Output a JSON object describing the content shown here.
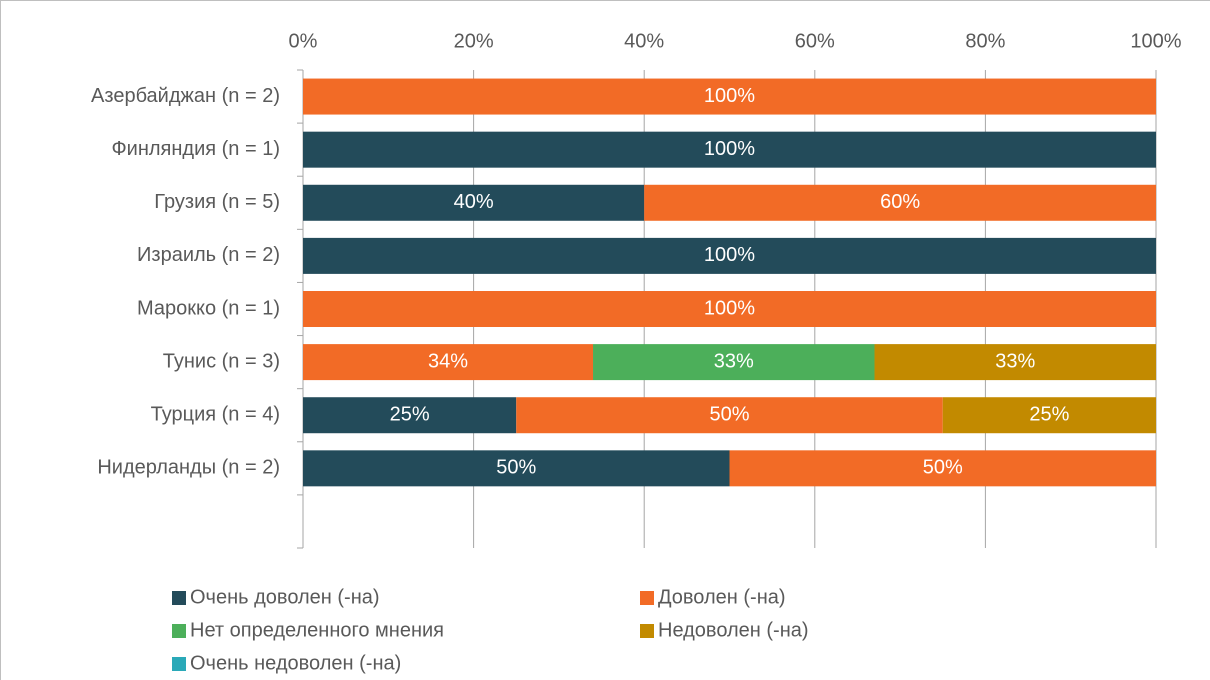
{
  "chart_data": {
    "type": "bar",
    "orientation": "horizontal",
    "stacked": true,
    "categories": [
      "Азербайджан (n = 2)",
      "Финляндия (n = 1)",
      "Грузия (n = 5)",
      "Израиль (n = 2)",
      "Марокко (n = 1)",
      "Тунис (n = 3)",
      "Турция (n = 4)",
      "Нидерланды (n = 2)",
      null
    ],
    "series": [
      {
        "name": "Очень доволен (-на)",
        "color": "#234b5a",
        "values": [
          null,
          100,
          40,
          100,
          null,
          null,
          25,
          50,
          null
        ],
        "value_labels": [
          null,
          "100%",
          "40%",
          "100%",
          null,
          null,
          "25%",
          "50%",
          null
        ]
      },
      {
        "name": "Доволен (-на)",
        "color": "#f26b26",
        "values": [
          100,
          null,
          60,
          null,
          100,
          34,
          50,
          50,
          null
        ],
        "value_labels": [
          "100%",
          null,
          "60%",
          null,
          "100%",
          "34%",
          "50%",
          "50%",
          null
        ]
      },
      {
        "name": "Нет определенного мнения",
        "color": "#4caf5a",
        "values": [
          null,
          null,
          null,
          null,
          null,
          33,
          null,
          null,
          null
        ],
        "value_labels": [
          null,
          null,
          null,
          null,
          null,
          "33%",
          null,
          null,
          null
        ]
      },
      {
        "name": "Недоволен (-на)",
        "color": "#c28a00",
        "values": [
          null,
          null,
          null,
          null,
          null,
          33,
          25,
          null,
          null
        ],
        "value_labels": [
          null,
          null,
          null,
          null,
          null,
          "33%",
          "25%",
          null,
          null
        ]
      },
      {
        "name": "Очень недоволен (-на)",
        "color": "#2aa9b8",
        "values": [
          null,
          null,
          null,
          null,
          null,
          null,
          null,
          null,
          null
        ],
        "value_labels": [
          null,
          null,
          null,
          null,
          null,
          null,
          null,
          null,
          null
        ]
      }
    ],
    "xlim": [
      0,
      100
    ],
    "xticks": [
      {
        "value": 0,
        "label": "0%"
      },
      {
        "value": 20,
        "label": "20%"
      },
      {
        "value": 40,
        "label": "40%"
      },
      {
        "value": 60,
        "label": "60%"
      },
      {
        "value": 80,
        "label": "80%"
      },
      {
        "value": 100,
        "label": "100%"
      }
    ],
    "grid": true,
    "legend": "bottom"
  }
}
